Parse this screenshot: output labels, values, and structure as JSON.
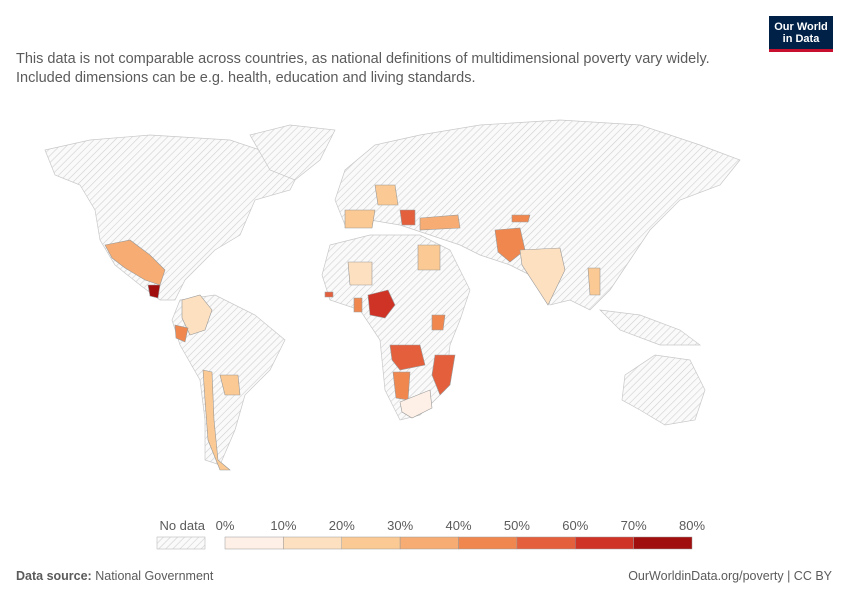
{
  "header": {
    "subtitle": "This data is not comparable across countries, as national definitions of multidimensional poverty vary widely. Included dimensions can be e.g. health, education and living standards.",
    "logo": [
      "Our World",
      "in Data"
    ]
  },
  "legend": {
    "no_data": "No data",
    "ticks": [
      "0%",
      "10%",
      "20%",
      "30%",
      "40%",
      "50%",
      "60%",
      "70%",
      "80%"
    ],
    "colors": [
      "#fef0e6",
      "#fde0c0",
      "#fbc993",
      "#f6ac72",
      "#f0874f",
      "#e4603d",
      "#cf3326",
      "#a10e0e"
    ]
  },
  "footer": {
    "source_label": "Data source:",
    "source": "National Government",
    "credit": "OurWorldinData.org/poverty | CC BY"
  }
}
